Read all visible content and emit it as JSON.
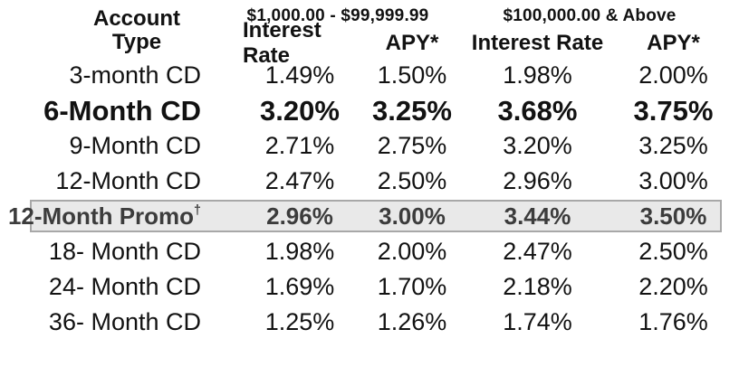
{
  "colors": {
    "page_bg": "#ffffff",
    "text": "#121212",
    "promo_bg": "#e9e9e9",
    "promo_border": "#a8a8a8",
    "promo_text": "#3c3c3c"
  },
  "table": {
    "header": {
      "account_type": "Account\nType",
      "tier_low": "$1,000.00 - $99,999.99",
      "tier_high": "$100,000.00 & Above",
      "interest_rate_label": "Interest Rate",
      "apy_label": "APY*"
    },
    "rows": [
      {
        "account_type": "3-month CD",
        "tier1_interest_rate": "1.49%",
        "tier1_apy": "1.50%",
        "tier2_interest_rate": "1.98%",
        "tier2_apy": "2.00%",
        "style": "regular"
      },
      {
        "account_type": "6-Month CD",
        "tier1_interest_rate": "3.20%",
        "tier1_apy": "3.25%",
        "tier2_interest_rate": "3.68%",
        "tier2_apy": "3.75%",
        "style": "featured"
      },
      {
        "account_type": "9-Month CD",
        "tier1_interest_rate": "2.71%",
        "tier1_apy": "2.75%",
        "tier2_interest_rate": "3.20%",
        "tier2_apy": "3.25%",
        "style": "regular"
      },
      {
        "account_type": "12-Month CD",
        "tier1_interest_rate": "2.47%",
        "tier1_apy": "2.50%",
        "tier2_interest_rate": "2.96%",
        "tier2_apy": "3.00%",
        "style": "regular"
      },
      {
        "account_type": "12-Month Promo",
        "dagger": "†",
        "tier1_interest_rate": "2.96%",
        "tier1_apy": "3.00%",
        "tier2_interest_rate": "3.44%",
        "tier2_apy": "3.50%",
        "style": "promo"
      },
      {
        "account_type": "18- Month CD",
        "tier1_interest_rate": "1.98%",
        "tier1_apy": "2.00%",
        "tier2_interest_rate": "2.47%",
        "tier2_apy": "2.50%",
        "style": "regular"
      },
      {
        "account_type": "24- Month CD",
        "tier1_interest_rate": "1.69%",
        "tier1_apy": "1.70%",
        "tier2_interest_rate": "2.18%",
        "tier2_apy": "2.20%",
        "style": "regular"
      },
      {
        "account_type": "36- Month CD",
        "tier1_interest_rate": "1.25%",
        "tier1_apy": "1.26%",
        "tier2_interest_rate": "1.74%",
        "tier2_apy": "1.76%",
        "style": "regular"
      }
    ]
  }
}
